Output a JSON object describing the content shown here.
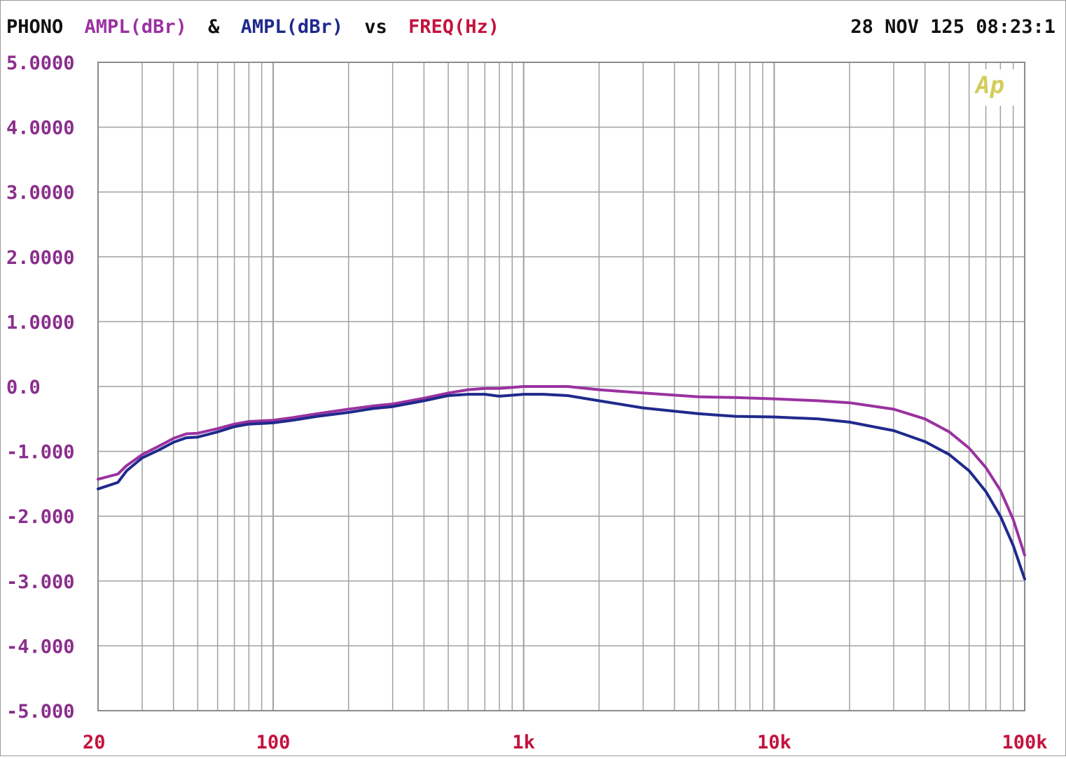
{
  "header": {
    "label": "PHONO",
    "ampl_a": "AMPL(dBr)",
    "amp": "&",
    "ampl_b": "AMPL(dBr)",
    "vs": "vs",
    "freq": "FREQ(Hz)",
    "timestamp": "28 NOV 125 08:23:1"
  },
  "logo": {
    "text": "Ap",
    "color": "#d4cc5a"
  },
  "colors": {
    "series_a": "#9a32a0",
    "series_b": "#1f2a8c",
    "freq_label": "#c4123c",
    "header_text": "#111111",
    "y_tick": "#8a2e8c",
    "x_tick": "#c4123c",
    "grid": "#a0a0a0"
  },
  "chart_data": {
    "type": "line",
    "xscale": "log",
    "xlim": [
      20,
      100000
    ],
    "ylim": [
      -5,
      5
    ],
    "y_ticks": [
      {
        "value": 5,
        "label": "5.0000"
      },
      {
        "value": 4,
        "label": "4.0000"
      },
      {
        "value": 3,
        "label": "3.0000"
      },
      {
        "value": 2,
        "label": "2.0000"
      },
      {
        "value": 1,
        "label": "1.0000"
      },
      {
        "value": 0,
        "label": "0.0"
      },
      {
        "value": -1,
        "label": "-1.000"
      },
      {
        "value": -2,
        "label": "-2.000"
      },
      {
        "value": -3,
        "label": "-3.000"
      },
      {
        "value": -4,
        "label": "-4.000"
      },
      {
        "value": -5,
        "label": "-5.000"
      }
    ],
    "x_ticks": [
      {
        "value": 20,
        "label": "20"
      },
      {
        "value": 100,
        "label": "100"
      },
      {
        "value": 1000,
        "label": "1k"
      },
      {
        "value": 10000,
        "label": "10k"
      },
      {
        "value": 100000,
        "label": "100k"
      }
    ],
    "grid": true,
    "series": [
      {
        "color": "#9a32a0",
        "x": [
          20,
          24,
          26,
          30,
          35,
          40,
          45,
          50,
          60,
          70,
          80,
          100,
          120,
          150,
          200,
          250,
          300,
          400,
          500,
          600,
          700,
          800,
          1000,
          1200,
          1500,
          2000,
          3000,
          5000,
          7000,
          10000,
          15000,
          20000,
          30000,
          40000,
          50000,
          60000,
          70000,
          80000,
          90000,
          100000
        ],
        "y": [
          -1.43,
          -1.35,
          -1.22,
          -1.05,
          -0.92,
          -0.8,
          -0.73,
          -0.72,
          -0.65,
          -0.58,
          -0.54,
          -0.52,
          -0.48,
          -0.42,
          -0.35,
          -0.3,
          -0.27,
          -0.18,
          -0.1,
          -0.05,
          -0.03,
          -0.03,
          0.0,
          0.0,
          0.0,
          -0.05,
          -0.1,
          -0.16,
          -0.17,
          -0.19,
          -0.22,
          -0.25,
          -0.35,
          -0.5,
          -0.7,
          -0.95,
          -1.25,
          -1.6,
          -2.05,
          -2.6
        ]
      },
      {
        "color": "#1f2a8c",
        "x": [
          20,
          24,
          26,
          30,
          35,
          40,
          45,
          50,
          60,
          70,
          80,
          100,
          120,
          150,
          200,
          250,
          300,
          400,
          500,
          600,
          700,
          800,
          1000,
          1200,
          1500,
          2000,
          3000,
          5000,
          7000,
          10000,
          15000,
          20000,
          30000,
          40000,
          50000,
          60000,
          70000,
          80000,
          90000,
          100000
        ],
        "y": [
          -1.58,
          -1.48,
          -1.3,
          -1.1,
          -0.98,
          -0.86,
          -0.79,
          -0.78,
          -0.7,
          -0.62,
          -0.58,
          -0.56,
          -0.52,
          -0.46,
          -0.4,
          -0.34,
          -0.31,
          -0.22,
          -0.14,
          -0.12,
          -0.12,
          -0.15,
          -0.12,
          -0.12,
          -0.14,
          -0.22,
          -0.33,
          -0.42,
          -0.46,
          -0.47,
          -0.5,
          -0.55,
          -0.68,
          -0.85,
          -1.05,
          -1.3,
          -1.62,
          -2.0,
          -2.45,
          -2.97
        ]
      }
    ]
  }
}
